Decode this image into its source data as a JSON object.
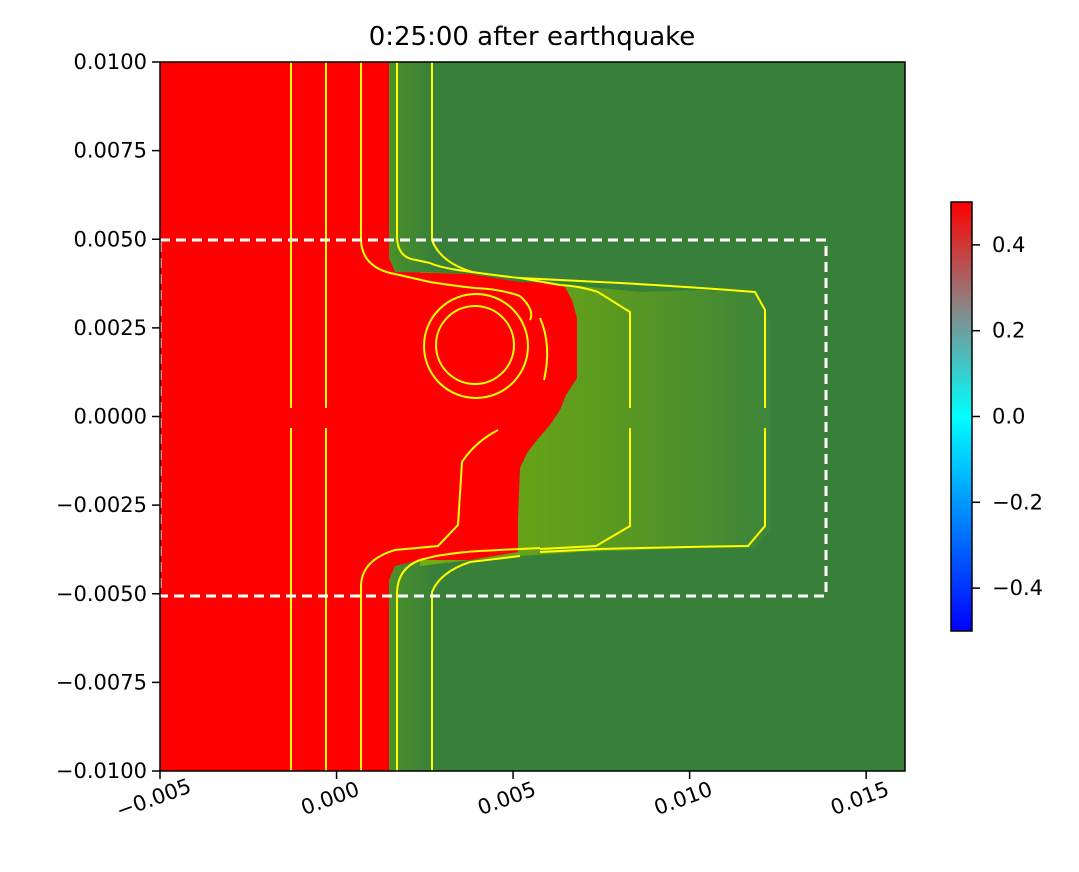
{
  "chart_data": {
    "type": "heatmap",
    "title": "0:25:00 after earthquake",
    "xlim": [
      -0.005,
      0.0161
    ],
    "ylim": [
      -0.01,
      0.01
    ],
    "x_ticks": [
      {
        "value": -0.005,
        "label": "−0.005"
      },
      {
        "value": 0.0,
        "label": "0.000"
      },
      {
        "value": 0.005,
        "label": "0.005"
      },
      {
        "value": 0.01,
        "label": "0.010"
      },
      {
        "value": 0.015,
        "label": "0.015"
      }
    ],
    "y_ticks": [
      {
        "value": 0.01,
        "label": "0.0100"
      },
      {
        "value": 0.0075,
        "label": "0.0075"
      },
      {
        "value": 0.005,
        "label": "0.0050"
      },
      {
        "value": 0.0025,
        "label": "0.0025"
      },
      {
        "value": 0.0,
        "label": "0.0000"
      },
      {
        "value": -0.0025,
        "label": "−0.0025"
      },
      {
        "value": -0.005,
        "label": "−0.0050"
      },
      {
        "value": -0.0075,
        "label": "−0.0075"
      },
      {
        "value": -0.01,
        "label": "−0.0100"
      }
    ],
    "colorbar": {
      "range": [
        -0.5,
        0.5
      ],
      "ticks": [
        {
          "value": 0.4,
          "label": "0.4"
        },
        {
          "value": 0.2,
          "label": "0.2"
        },
        {
          "value": 0.0,
          "label": "0.0"
        },
        {
          "value": -0.2,
          "label": "−0.2"
        },
        {
          "value": -0.4,
          "label": "−0.4"
        }
      ],
      "colors": [
        "#0000ff",
        "#00ffff",
        "#ff0000"
      ]
    },
    "colors": {
      "land": "#38803a",
      "land_light": "#74ab0e",
      "water": "#ff0000",
      "contour": "#ffff00",
      "box": "#ffffff"
    },
    "dashed_box": {
      "x": [
        -0.005,
        0.0137
      ],
      "y": [
        -0.0051,
        0.005
      ]
    },
    "grid": false
  }
}
